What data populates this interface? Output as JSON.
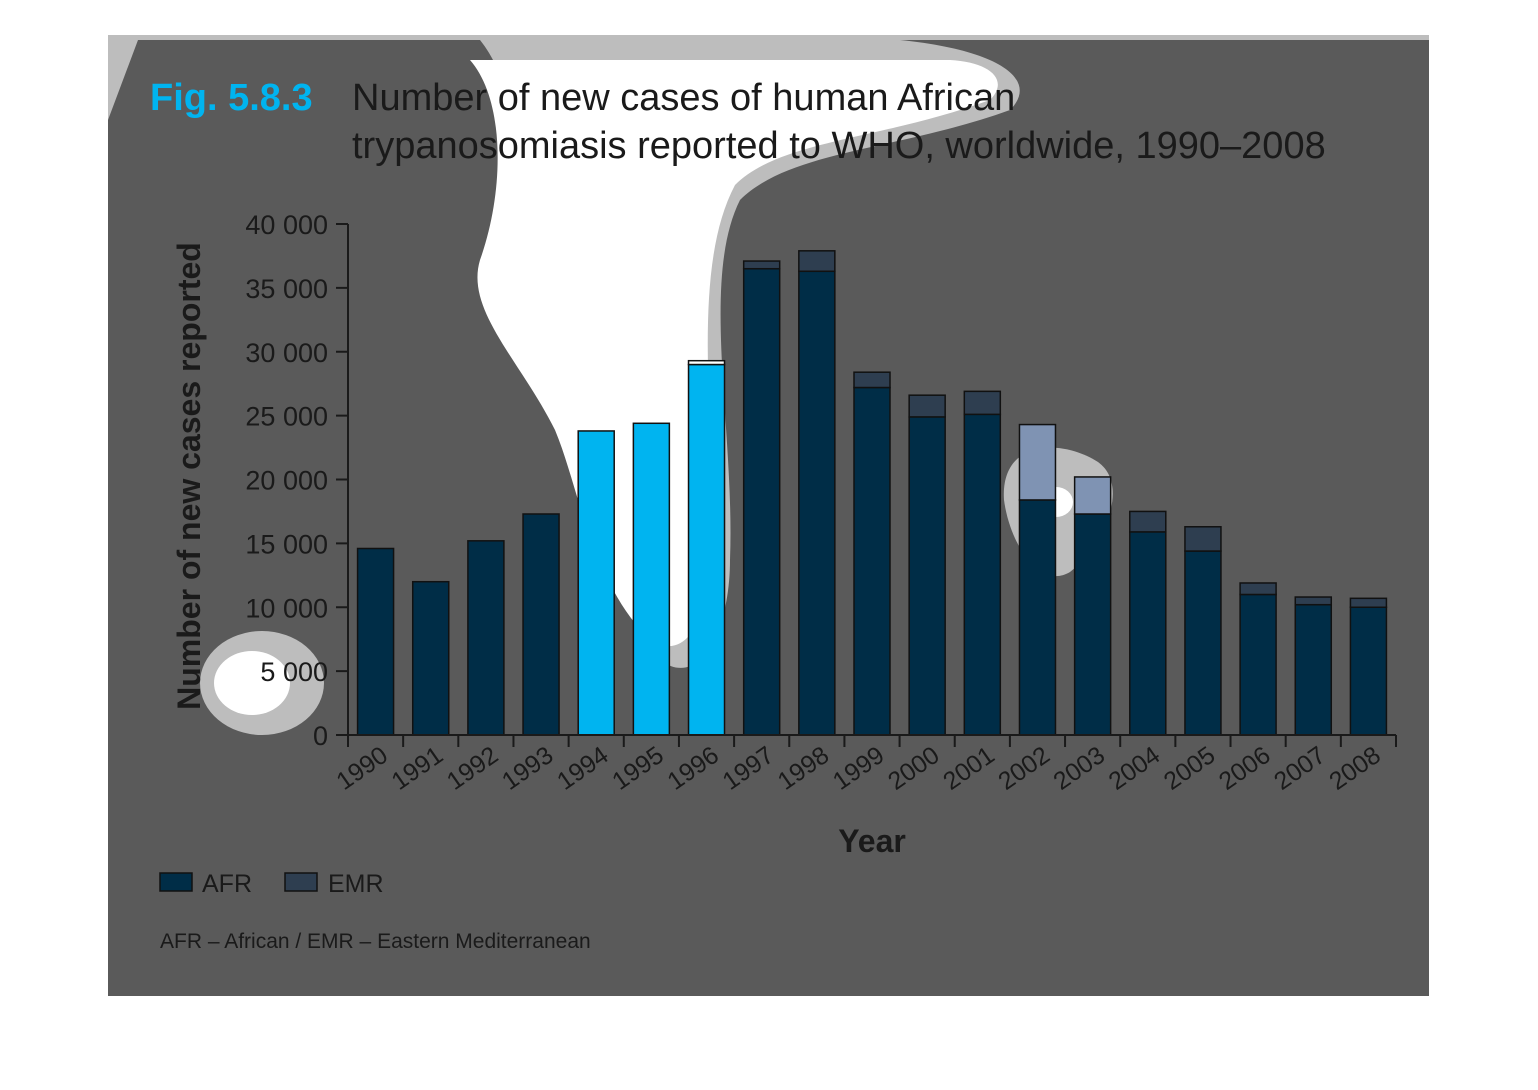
{
  "figure": {
    "number": "Fig. 5.8.3",
    "title_line1": "Number of new cases of human African",
    "title_line2": "trypanosomiasis reported to WHO, worldwide, 1990–2008",
    "note": "AFR – African / EMR – Eastern Mediterranean"
  },
  "colors": {
    "panel": "#5a5a5a",
    "afr": "#002d47",
    "emr": "#2e3e50",
    "afr_highlight": "#00b4f0",
    "emr_highlight": "#7f93b3"
  },
  "chart_data": {
    "type": "bar",
    "stacked": true,
    "title": "Number of new cases of human African trypanosomiasis reported to WHO, worldwide, 1990–2008",
    "xlabel": "Year",
    "ylabel": "Number of new cases reported",
    "ylim": [
      0,
      40000
    ],
    "yticks": [
      0,
      5000,
      10000,
      15000,
      20000,
      25000,
      30000,
      35000,
      40000
    ],
    "ytick_labels": [
      "0",
      "5 000",
      "10 000",
      "15 000",
      "20 000",
      "25 000",
      "30 000",
      "35 000",
      "40 000"
    ],
    "categories": [
      "1990",
      "1991",
      "1992",
      "1993",
      "1994",
      "1995",
      "1996",
      "1997",
      "1998",
      "1999",
      "2000",
      "2001",
      "2002",
      "2003",
      "2004",
      "2005",
      "2006",
      "2007",
      "2008"
    ],
    "series": [
      {
        "name": "AFR",
        "values": [
          14600,
          12000,
          15200,
          17300,
          23800,
          24400,
          29000,
          36500,
          36300,
          27200,
          24900,
          25100,
          18400,
          17300,
          15900,
          14400,
          11000,
          10200,
          10000
        ]
      },
      {
        "name": "EMR",
        "values": [
          0,
          0,
          0,
          0,
          0,
          0,
          300,
          600,
          1600,
          1200,
          1700,
          1800,
          5900,
          2900,
          1600,
          1900,
          900,
          600,
          700
        ]
      }
    ],
    "legend": {
      "position": "bottom-left",
      "entries": [
        "AFR",
        "EMR"
      ]
    },
    "grid": false
  }
}
